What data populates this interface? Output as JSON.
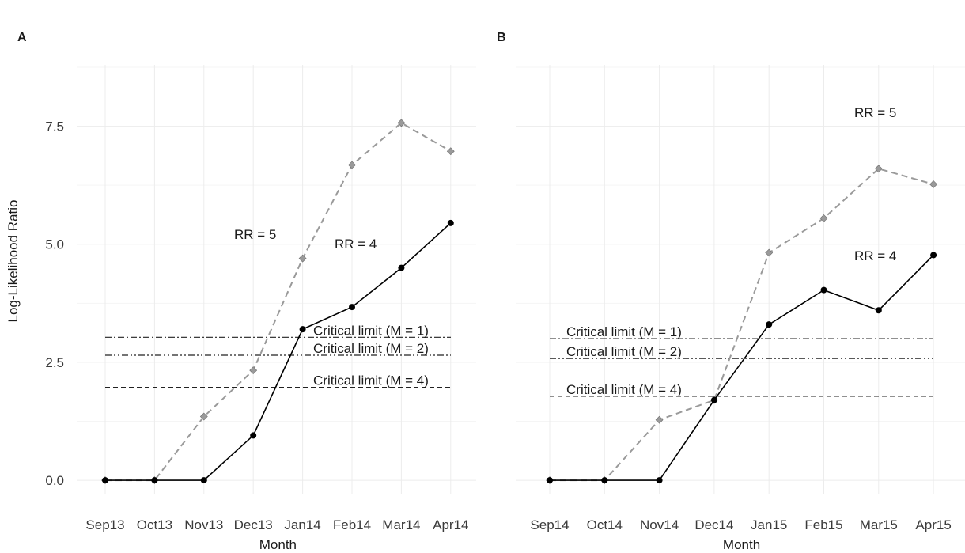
{
  "chart_data": [
    {
      "type": "line",
      "panel_label": "A",
      "xlabel": "Month",
      "ylabel": "Log-Likelihood Ratio",
      "categories": [
        "Sep13",
        "Oct13",
        "Nov13",
        "Dec13",
        "Jan14",
        "Feb14",
        "Mar14",
        "Apr14"
      ],
      "ylim": [
        -0.3,
        8.8
      ],
      "yticks": [
        0.0,
        2.5,
        5.0,
        7.5
      ],
      "ytick_labels": [
        "0.0",
        "2.5",
        "5.0",
        "7.5"
      ],
      "grid": true,
      "series": [
        {
          "name": "RR = 5",
          "values": [
            0,
            0,
            1.35,
            2.33,
            4.7,
            6.68,
            7.57,
            6.97
          ],
          "color": "#9a9a9a",
          "marker": "diamond",
          "dash": "dashed"
        },
        {
          "name": "RR = 4",
          "values": [
            0,
            0,
            0,
            0.95,
            3.2,
            3.67,
            4.5,
            5.45
          ],
          "color": "#000000",
          "marker": "circle",
          "dash": "solid"
        }
      ],
      "hlines": [
        {
          "label": "Critical limit (M = 1)",
          "value": 3.03,
          "dash": "dashdot"
        },
        {
          "label": "Critical limit (M = 2)",
          "value": 2.65,
          "dash": "dashdotdot"
        },
        {
          "label": "Critical limit (M = 4)",
          "value": 1.97,
          "dash": "dashed"
        }
      ]
    },
    {
      "type": "line",
      "panel_label": "B",
      "xlabel": "Month",
      "ylabel": "",
      "categories": [
        "Sep14",
        "Oct14",
        "Nov14",
        "Dec14",
        "Jan15",
        "Feb15",
        "Mar15",
        "Apr15"
      ],
      "ylim": [
        -0.3,
        8.8
      ],
      "yticks": [
        0.0,
        2.5,
        5.0,
        7.5
      ],
      "ytick_labels": [],
      "grid": true,
      "series": [
        {
          "name": "RR = 5",
          "values": [
            0,
            0,
            1.28,
            1.7,
            4.82,
            5.55,
            6.6,
            6.27
          ],
          "color": "#9a9a9a",
          "marker": "diamond",
          "dash": "dashed"
        },
        {
          "name": "RR = 4",
          "values": [
            0,
            0,
            0,
            1.7,
            3.3,
            4.03,
            3.6,
            4.77
          ],
          "color": "#000000",
          "marker": "circle",
          "dash": "solid"
        }
      ],
      "hlines": [
        {
          "label": "Critical limit (M = 1)",
          "value": 3.0,
          "dash": "dashdot"
        },
        {
          "label": "Critical limit (M = 2)",
          "value": 2.58,
          "dash": "dashdotdot"
        },
        {
          "label": "Critical limit (M = 4)",
          "value": 1.78,
          "dash": "dashed"
        }
      ]
    }
  ]
}
